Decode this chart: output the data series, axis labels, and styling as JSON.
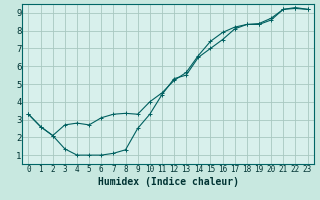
{
  "title": "",
  "xlabel": "Humidex (Indice chaleur)",
  "ylabel": "",
  "background_color": "#c8e8e0",
  "plot_bg_color": "#d8f0ec",
  "grid_color": "#a8c8c0",
  "line_color": "#006060",
  "xlim": [
    -0.5,
    23.5
  ],
  "ylim": [
    0.5,
    9.5
  ],
  "xticks": [
    0,
    1,
    2,
    3,
    4,
    5,
    6,
    7,
    8,
    9,
    10,
    11,
    12,
    13,
    14,
    15,
    16,
    17,
    18,
    19,
    20,
    21,
    22,
    23
  ],
  "yticks": [
    1,
    2,
    3,
    4,
    5,
    6,
    7,
    8,
    9
  ],
  "line1_x": [
    0,
    1,
    2,
    3,
    4,
    5,
    6,
    7,
    8,
    9,
    10,
    11,
    12,
    13,
    14,
    15,
    16,
    17,
    18,
    19,
    20,
    21,
    22,
    23
  ],
  "line1_y": [
    3.3,
    2.6,
    2.1,
    1.35,
    1.0,
    1.0,
    1.0,
    1.1,
    1.3,
    2.5,
    3.3,
    4.4,
    5.3,
    5.5,
    6.5,
    7.0,
    7.5,
    8.1,
    8.35,
    8.35,
    8.6,
    9.2,
    9.3,
    9.2
  ],
  "line2_x": [
    0,
    1,
    2,
    3,
    4,
    5,
    6,
    7,
    8,
    9,
    10,
    11,
    12,
    13,
    14,
    15,
    16,
    17,
    18,
    19,
    20,
    21,
    22,
    23
  ],
  "line2_y": [
    3.3,
    2.6,
    2.1,
    2.7,
    2.8,
    2.7,
    3.1,
    3.3,
    3.35,
    3.3,
    4.0,
    4.5,
    5.2,
    5.65,
    6.6,
    7.4,
    7.9,
    8.2,
    8.35,
    8.4,
    8.7,
    9.2,
    9.25,
    9.2
  ],
  "xlabel_fontsize": 7,
  "tick_fontsize": 5.5,
  "ytick_fontsize": 6.5
}
